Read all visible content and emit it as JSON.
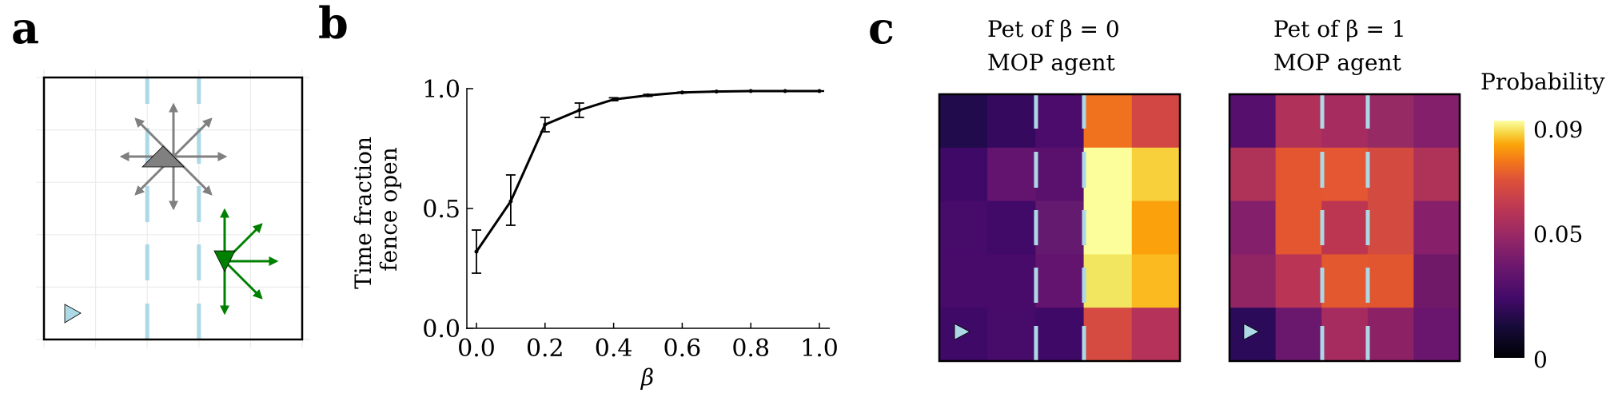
{
  "panels": {
    "a": {
      "letter": "a",
      "grid": {
        "rows": 5,
        "cols": 5
      },
      "fence_color": "#add8e6",
      "agents": [
        {
          "name": "pet-agent",
          "shape": "triangle-up",
          "color": "#808080",
          "actions": [
            "up",
            "down",
            "left",
            "right",
            "up-left",
            "up-right",
            "down-left",
            "down-right"
          ]
        },
        {
          "name": "mop-agent",
          "shape": "triangle-down",
          "color": "#008000",
          "actions": [
            "up",
            "down",
            "right",
            "up-right",
            "down-right"
          ]
        },
        {
          "name": "food-marker",
          "shape": "triangle-right",
          "color": "#add8e6"
        }
      ]
    },
    "b": {
      "letter": "b",
      "ylabel_line1": "Time fraction",
      "ylabel_line2": "fence open",
      "xlabel": "β",
      "yticks": [
        "0.0",
        "0.5",
        "1.0"
      ],
      "xticks": [
        "0.0",
        "0.2",
        "0.4",
        "0.6",
        "0.8",
        "1.0"
      ]
    },
    "c": {
      "letter": "c",
      "heatmap_left_title_line1": "Pet of β = 0",
      "heatmap_left_title_line2": "MOP agent",
      "heatmap_right_title_line1": "Pet of β = 1",
      "heatmap_right_title_line2": "MOP agent",
      "colorbar_label": "Probability",
      "colorbar_ticks": [
        "0.09",
        "0.05",
        "0"
      ]
    }
  },
  "chart_data": [
    {
      "type": "line",
      "title": "",
      "xlabel": "β",
      "ylabel": "Time fraction fence open",
      "x": [
        0.0,
        0.1,
        0.2,
        0.3,
        0.4,
        0.5,
        0.6,
        0.7,
        0.8,
        0.9,
        1.0
      ],
      "series": [
        {
          "name": "Time fraction fence open",
          "values": [
            0.32,
            0.53,
            0.85,
            0.91,
            0.955,
            0.972,
            0.984,
            0.988,
            0.99,
            0.99,
            0.99
          ],
          "error_low": [
            0.23,
            0.43,
            0.82,
            0.88,
            0.95,
            0.968,
            0.982,
            0.987,
            0.989,
            0.989,
            0.989
          ],
          "error_high": [
            0.41,
            0.64,
            0.88,
            0.94,
            0.962,
            0.976,
            0.986,
            0.99,
            0.991,
            0.991,
            0.991
          ]
        }
      ],
      "xlim": [
        0.0,
        1.0
      ],
      "ylim": [
        0.0,
        1.0
      ],
      "grid": false
    },
    {
      "type": "heatmap",
      "title": "Pet of β = 0 MOP agent",
      "rows": 5,
      "cols": 5,
      "colorbar_label": "Probability",
      "zlim": [
        0,
        0.09
      ],
      "values": [
        [
          0.008,
          0.014,
          0.02,
          0.066,
          0.056
        ],
        [
          0.016,
          0.026,
          0.024,
          0.09,
          0.082
        ],
        [
          0.018,
          0.017,
          0.027,
          0.09,
          0.072
        ],
        [
          0.019,
          0.019,
          0.026,
          0.087,
          0.078
        ],
        [
          0.016,
          0.018,
          0.016,
          0.057,
          0.047
        ]
      ],
      "colors": [
        [
          "#220b4c",
          "#350a5e",
          "#4c0c6b",
          "#f0711e",
          "#d24644"
        ],
        [
          "#3e0967",
          "#63146e",
          "#5a116e",
          "#fcfe9c",
          "#f7d03c"
        ],
        [
          "#470b6a",
          "#410968",
          "#641a6e",
          "#fcfe9c",
          "#fba10c"
        ],
        [
          "#480b6a",
          "#480b6a",
          "#63146e",
          "#f2e661",
          "#fbba1f"
        ],
        [
          "#3e0967",
          "#470b6a",
          "#3e0967",
          "#d54a41",
          "#b5325a"
        ]
      ]
    },
    {
      "type": "heatmap",
      "title": "Pet of β = 1 MOP agent",
      "rows": 5,
      "cols": 5,
      "colorbar_label": "Probability",
      "zlim": [
        0,
        0.09
      ],
      "values": [
        [
          0.023,
          0.046,
          0.044,
          0.04,
          0.035
        ],
        [
          0.046,
          0.06,
          0.06,
          0.055,
          0.046
        ],
        [
          0.035,
          0.06,
          0.049,
          0.055,
          0.036
        ],
        [
          0.038,
          0.049,
          0.061,
          0.06,
          0.03
        ],
        [
          0.01,
          0.028,
          0.044,
          0.037,
          0.028
        ]
      ],
      "colors": [
        [
          "#560f6d",
          "#b0315a",
          "#a62c60",
          "#962a65",
          "#831f6b"
        ],
        [
          "#af3259",
          "#e4562f",
          "#e45732",
          "#d24a40",
          "#af3259"
        ],
        [
          "#831f6b",
          "#e4562f",
          "#bc3551",
          "#d24a40",
          "#871f6b"
        ],
        [
          "#912463",
          "#ba3455",
          "#e4582f",
          "#e1552f",
          "#701968"
        ],
        [
          "#2b0a5a",
          "#6a176e",
          "#a62c60",
          "#8d2166",
          "#6a166e"
        ]
      ]
    }
  ]
}
